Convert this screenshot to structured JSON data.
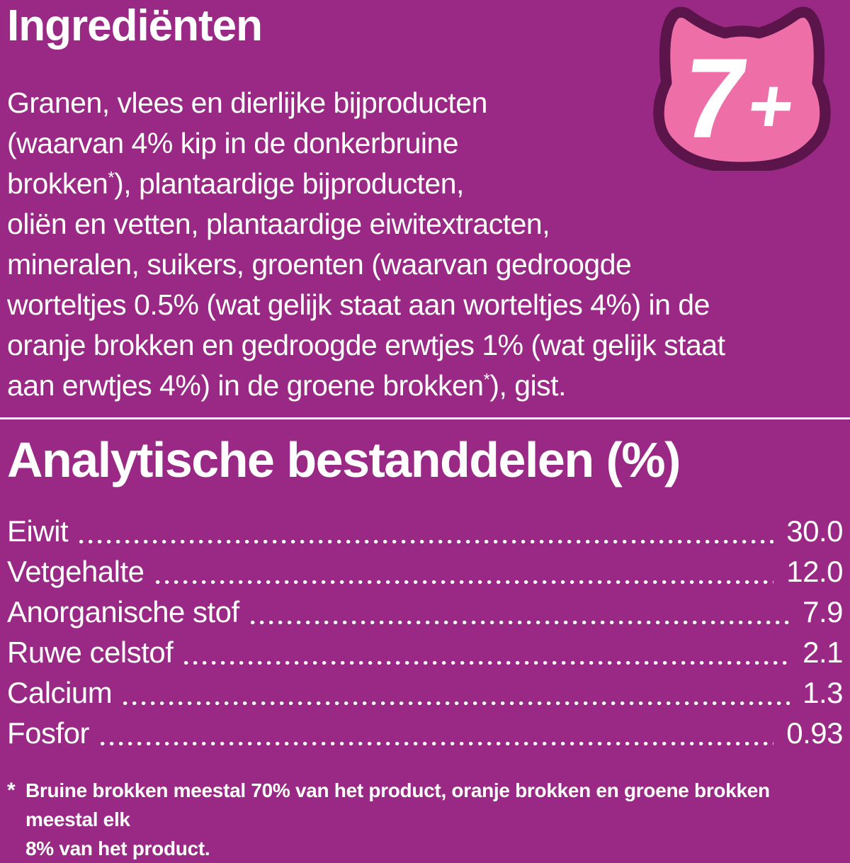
{
  "colors": {
    "background": "#9A2986",
    "badge_pink": "#EE6FA8",
    "badge_outline": "#5B154A",
    "text": "#FFFFFF"
  },
  "ingredients": {
    "title": "Ingrediënten",
    "lines": [
      "Granen, vlees en dierlijke bijproducten",
      "(waarvan 4% kip in de donkerbruine",
      "brokken*), plantaardige bijproducten,",
      "oliën en vetten, plantaardige eiwitextracten,",
      "mineralen, suikers, groenten (waarvan gedroogde",
      "worteltjes 0.5% (wat gelijk staat aan worteltjes 4%) in de",
      "oranje brokken en gedroogde erwtjes 1% (wat gelijk staat",
      "aan erwtjes 4%) in de groene brokken*), gist."
    ]
  },
  "age_badge": {
    "label": "7+",
    "icon": "cat-head-icon"
  },
  "analytical": {
    "title": "Analytische bestanddelen (%)",
    "rows": [
      {
        "label": "Eiwit",
        "value": "30.0"
      },
      {
        "label": "Vetgehalte",
        "value": "12.0"
      },
      {
        "label": "Anorganische stof",
        "value": "7.9"
      },
      {
        "label": "Ruwe celstof",
        "value": "2.1"
      },
      {
        "label": "Calcium",
        "value": "1.3"
      },
      {
        "label": "Fosfor",
        "value": "0.93"
      }
    ]
  },
  "footnote": {
    "marker": "*",
    "lines": [
      "Bruine brokken meestal 70% van het product, oranje brokken en groene brokken meestal elk",
      "8% van het product."
    ]
  }
}
